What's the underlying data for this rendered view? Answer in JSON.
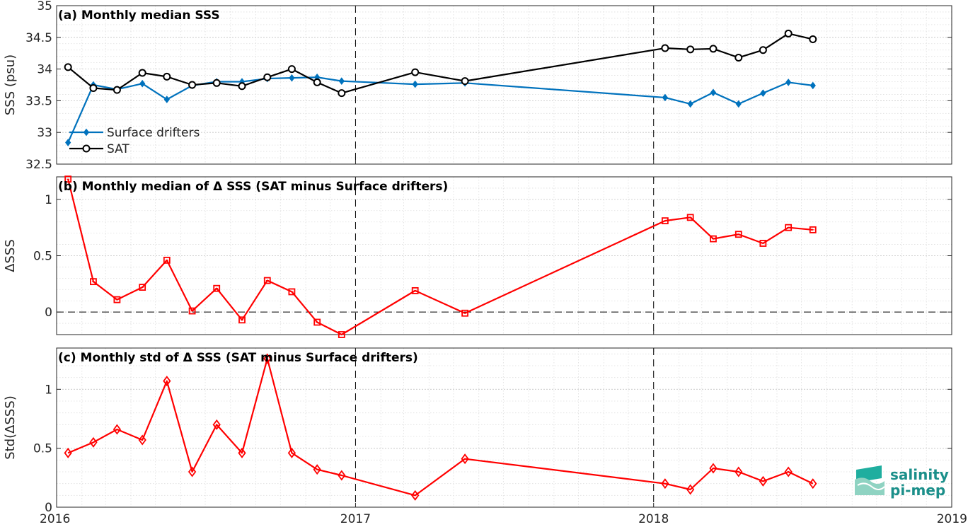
{
  "chart_data": [
    {
      "type": "line",
      "title": "(a) Monthly median SSS",
      "ylabel": "SSS (psu)",
      "ylim": [
        32.5,
        35
      ],
      "xlim": [
        "2016-01-01",
        "2019-01-01"
      ],
      "yticks": [
        32.5,
        33,
        33.5,
        34,
        34.5,
        35
      ],
      "ytick_labels": [
        "32.5",
        "33",
        "33.5",
        "34",
        "34.5",
        "35"
      ],
      "grid": true,
      "legend_position": "lower-left",
      "series": [
        {
          "name": "Surface drifters",
          "color": "#0072BD",
          "marker": "diamond-filled",
          "points": [
            [
              "2016-01-15",
              32.84
            ],
            [
              "2016-02-15",
              33.75
            ],
            [
              "2016-03-15",
              33.68
            ],
            [
              "2016-04-15",
              33.77
            ],
            [
              "2016-05-15",
              33.52
            ],
            [
              "2016-06-15",
              33.74
            ],
            [
              "2016-07-15",
              33.8
            ],
            [
              "2016-08-15",
              33.8
            ],
            [
              "2016-09-15",
              33.85
            ],
            [
              "2016-10-15",
              33.86
            ],
            [
              "2016-11-15",
              33.87
            ],
            [
              "2016-12-15",
              33.81
            ],
            [
              "2017-03-15",
              33.76
            ],
            [
              "2017-05-15",
              33.78
            ],
            [
              "2018-01-15",
              33.55
            ],
            [
              "2018-02-15",
              33.45
            ],
            [
              "2018-03-15",
              33.63
            ],
            [
              "2018-04-15",
              33.45
            ],
            [
              "2018-05-15",
              33.62
            ],
            [
              "2018-06-15",
              33.79
            ],
            [
              "2018-07-15",
              33.74
            ]
          ]
        },
        {
          "name": "SAT",
          "color": "#000000",
          "marker": "circle-open",
          "points": [
            [
              "2016-01-15",
              34.03
            ],
            [
              "2016-02-15",
              33.7
            ],
            [
              "2016-03-15",
              33.67
            ],
            [
              "2016-04-15",
              33.94
            ],
            [
              "2016-05-15",
              33.88
            ],
            [
              "2016-06-15",
              33.75
            ],
            [
              "2016-07-15",
              33.78
            ],
            [
              "2016-08-15",
              33.73
            ],
            [
              "2016-09-15",
              33.87
            ],
            [
              "2016-10-15",
              34.0
            ],
            [
              "2016-11-15",
              33.79
            ],
            [
              "2016-12-15",
              33.62
            ],
            [
              "2017-03-15",
              33.95
            ],
            [
              "2017-05-15",
              33.81
            ],
            [
              "2018-01-15",
              34.33
            ],
            [
              "2018-02-15",
              34.31
            ],
            [
              "2018-03-15",
              34.32
            ],
            [
              "2018-04-15",
              34.18
            ],
            [
              "2018-05-15",
              34.3
            ],
            [
              "2018-06-15",
              34.56
            ],
            [
              "2018-07-15",
              34.47
            ]
          ]
        }
      ]
    },
    {
      "type": "line",
      "title": "(b) Monthly median of Δ SSS (SAT minus Surface drifters)",
      "ylabel": "ΔSSS",
      "ylim": [
        -0.2,
        1.2
      ],
      "xlim": [
        "2016-01-01",
        "2019-01-01"
      ],
      "yticks": [
        0,
        0.5,
        1
      ],
      "ytick_labels": [
        "0",
        "0.5",
        "1"
      ],
      "grid": true,
      "reference_line_y": 0,
      "series": [
        {
          "color": "#FF0000",
          "marker": "square-open",
          "points": [
            [
              "2016-01-15",
              1.18
            ],
            [
              "2016-02-15",
              0.27
            ],
            [
              "2016-03-15",
              0.11
            ],
            [
              "2016-04-15",
              0.22
            ],
            [
              "2016-05-15",
              0.46
            ],
            [
              "2016-06-15",
              0.01
            ],
            [
              "2016-07-15",
              0.21
            ],
            [
              "2016-08-15",
              -0.07
            ],
            [
              "2016-09-15",
              0.28
            ],
            [
              "2016-10-15",
              0.18
            ],
            [
              "2016-11-15",
              -0.09
            ],
            [
              "2016-12-15",
              -0.2
            ],
            [
              "2017-03-15",
              0.19
            ],
            [
              "2017-05-15",
              -0.01
            ],
            [
              "2018-01-15",
              0.81
            ],
            [
              "2018-02-15",
              0.84
            ],
            [
              "2018-03-15",
              0.65
            ],
            [
              "2018-04-15",
              0.69
            ],
            [
              "2018-05-15",
              0.61
            ],
            [
              "2018-06-15",
              0.75
            ],
            [
              "2018-07-15",
              0.73
            ]
          ]
        }
      ]
    },
    {
      "type": "line",
      "title": "(c) Monthly std of Δ SSS (SAT minus Surface drifters)",
      "ylabel": "Std(ΔSSS)",
      "ylim": [
        0,
        1.35
      ],
      "xlim": [
        "2016-01-01",
        "2019-01-01"
      ],
      "yticks": [
        0,
        0.5,
        1
      ],
      "ytick_labels": [
        "0",
        "0.5",
        "1"
      ],
      "xticks": [
        "2016-01-01",
        "2017-01-01",
        "2018-01-01",
        "2019-01-01"
      ],
      "xtick_labels": [
        "2016",
        "2017",
        "2018",
        "2019"
      ],
      "grid": true,
      "series": [
        {
          "color": "#FF0000",
          "marker": "diamond-open",
          "points": [
            [
              "2016-01-15",
              0.46
            ],
            [
              "2016-02-15",
              0.55
            ],
            [
              "2016-03-15",
              0.66
            ],
            [
              "2016-04-15",
              0.57
            ],
            [
              "2016-05-15",
              1.07
            ],
            [
              "2016-06-15",
              0.3
            ],
            [
              "2016-07-15",
              0.7
            ],
            [
              "2016-08-15",
              0.46
            ],
            [
              "2016-09-15",
              1.26
            ],
            [
              "2016-10-15",
              0.46
            ],
            [
              "2016-11-15",
              0.32
            ],
            [
              "2016-12-15",
              0.27
            ],
            [
              "2017-03-15",
              0.1
            ],
            [
              "2017-05-15",
              0.41
            ],
            [
              "2018-01-15",
              0.2
            ],
            [
              "2018-02-15",
              0.15
            ],
            [
              "2018-03-15",
              0.33
            ],
            [
              "2018-04-15",
              0.3
            ],
            [
              "2018-05-15",
              0.22
            ],
            [
              "2018-06-15",
              0.3
            ],
            [
              "2018-07-15",
              0.2
            ]
          ]
        }
      ]
    }
  ],
  "year_dividers": [
    "2017-01-01",
    "2018-01-01"
  ],
  "logo": {
    "line1": "salinity",
    "line2": "pi-mep",
    "color": "#1b8f8a"
  }
}
